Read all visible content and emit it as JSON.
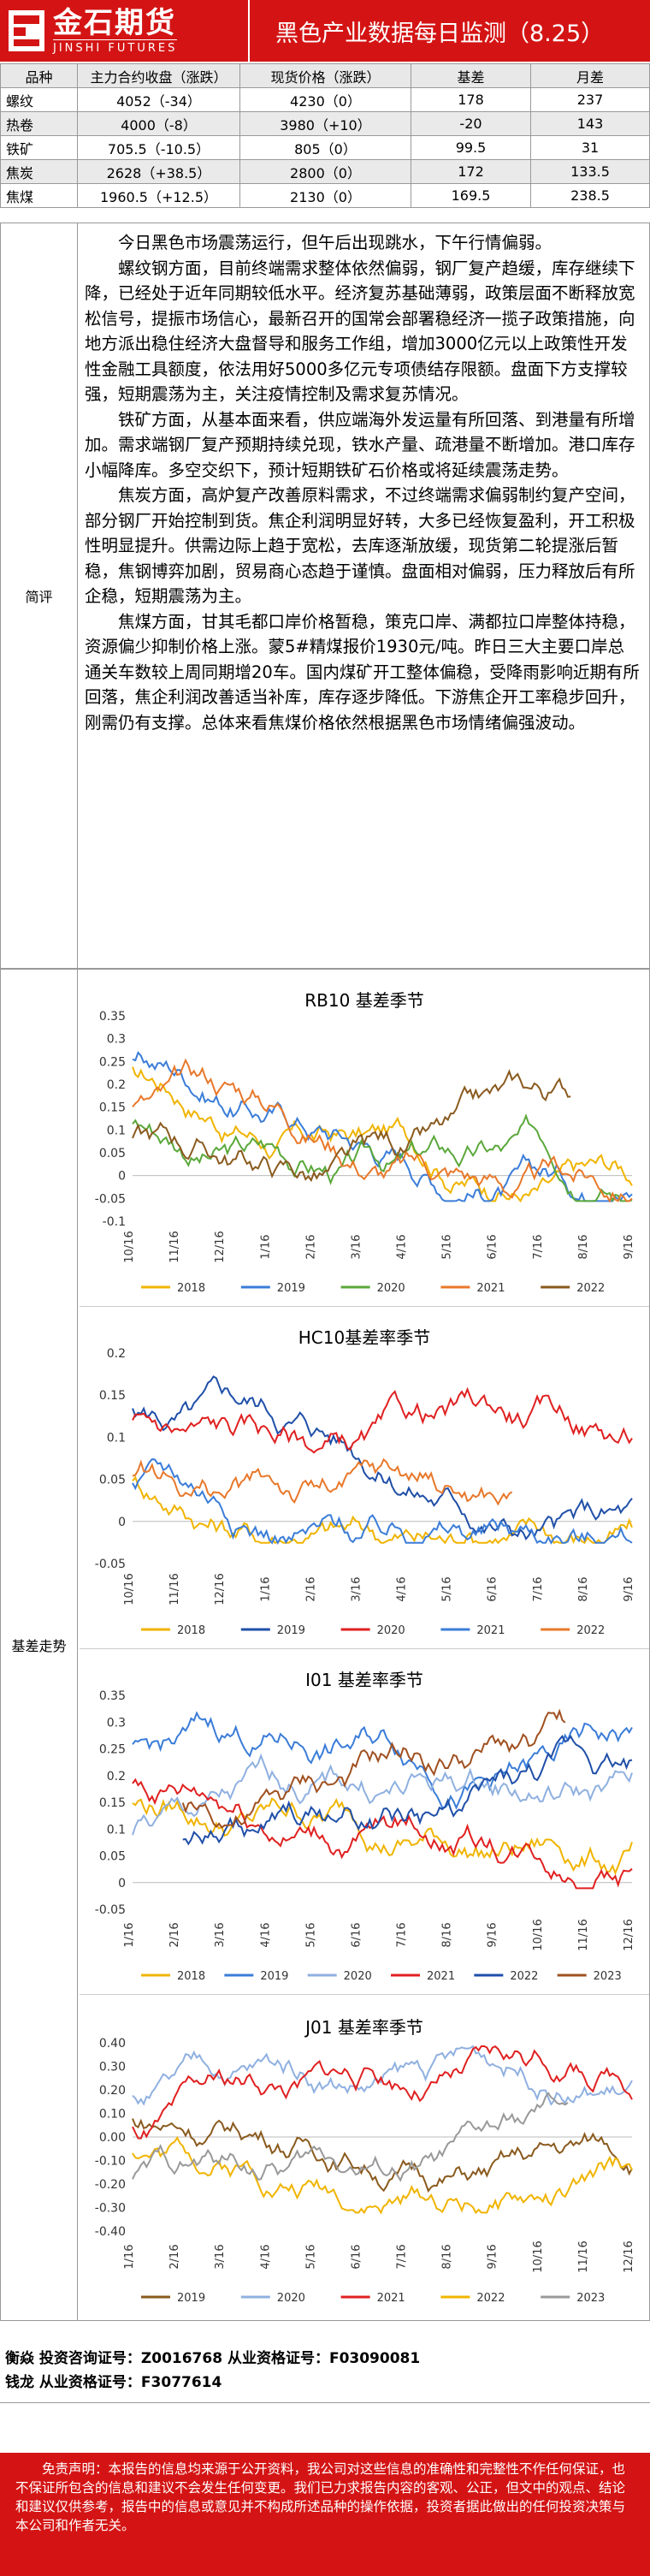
{
  "header": {
    "logo_cn": "金石期货",
    "logo_en": "JINSHI FUTURES",
    "title": "黑色产业数据每日监测（8.25）"
  },
  "price_table": {
    "headers": [
      "品种",
      "主力合约收盘（涨跌）",
      "现货价格（涨跌）",
      "基差",
      "月差"
    ],
    "rows": [
      [
        "螺纹",
        "4052（-34）",
        "4230（0）",
        "178",
        "237"
      ],
      [
        "热卷",
        "4000（-8）",
        "3980（+10）",
        "-20",
        "143"
      ],
      [
        "铁矿",
        "705.5（-10.5）",
        "805（0）",
        "99.5",
        "31"
      ],
      [
        "焦炭",
        "2628（+38.5）",
        "2800（0）",
        "172",
        "133.5"
      ],
      [
        "焦煤",
        "1960.5（+12.5）",
        "2130（0）",
        "169.5",
        "238.5"
      ]
    ]
  },
  "commentary": {
    "label": "简评",
    "paragraphs": [
      "今日黑色市场震荡运行，但午后出现跳水，下午行情偏弱。",
      "螺纹钢方面，目前终端需求整体依然偏弱，钢厂复产趋缓，库存继续下降，已经处于近年同期较低水平。经济复苏基础薄弱，政策层面不断释放宽松信号，提振市场信心，最新召开的国常会部署稳经济一揽子政策措施，向地方派出稳住经济大盘督导和服务工作组，增加3000亿元以上政策性开发性金融工具额度，依法用好5000多亿元专项债结存限额。盘面下方支撑较强，短期震荡为主，关注疫情控制及需求复苏情况。",
      "铁矿方面，从基本面来看，供应端海外发运量有所回落、到港量有所增加。需求端钢厂复产预期持续兑现，铁水产量、疏港量不断增加。港口库存小幅降库。多空交织下，预计短期铁矿石价格或将延续震荡走势。",
      "焦炭方面，高炉复产改善原料需求，不过终端需求偏弱制约复产空间，部分钢厂开始控制到货。焦企利润明显好转，大多已经恢复盈利，开工积极性明显提升。供需边际上趋于宽松，去库逐渐放缓，现货第二轮提涨后暂稳，焦钢博弈加剧，贸易商心态趋于谨慎。盘面相对偏弱，压力释放后有所企稳，短期震荡为主。",
      "焦煤方面，甘其毛都口岸价格暂稳，策克口岸、满都拉口岸整体持稳，资源偏少抑制价格上涨。蒙5#精煤报价1930元/吨。昨日三大主要口岸总通关车数较上周同期增20车。国内煤矿开工整体偏稳，受降雨影响近期有所回落，焦企利润改善适当补库，库存逐步降低。下游焦企开工率稳步回升，刚需仍有支撑。总体来看焦煤价格依然根据黑色市场情绪偏强波动。"
    ]
  },
  "basis_section": {
    "label": "基差走势"
  },
  "charts": [
    {
      "title": "RB10 基差季节",
      "yticks": [
        "0.35",
        "0.3",
        "0.25",
        "0.2",
        "0.15",
        "0.1",
        "0.05",
        "0",
        "-0.05",
        "-0.1"
      ],
      "xticks": [
        "10/16",
        "11/16",
        "12/16",
        "1/16",
        "2/16",
        "3/16",
        "4/16",
        "5/16",
        "6/16",
        "7/16",
        "8/16",
        "9/16"
      ],
      "legend": [
        "2018",
        "2019",
        "2020",
        "2021",
        "2022"
      ],
      "colors": [
        "#f0b400",
        "#3b7dd8",
        "#5aa83a",
        "#e8782a",
        "#8a5a1e"
      ]
    },
    {
      "title": "HC10基差率季节",
      "yticks": [
        "0.2",
        "0.15",
        "0.1",
        "0.05",
        "0",
        "-0.05"
      ],
      "xticks": [
        "10/16",
        "11/16",
        "12/16",
        "1/16",
        "2/16",
        "3/16",
        "4/16",
        "5/16",
        "6/16",
        "7/16",
        "8/16",
        "9/16"
      ],
      "legend": [
        "2018",
        "2019",
        "2020",
        "2021",
        "2022"
      ],
      "colors": [
        "#f0b400",
        "#1f4fa8",
        "#e02020",
        "#3b7dd8",
        "#e8782a"
      ]
    },
    {
      "title": "I01 基差率季节",
      "yticks": [
        "0.35",
        "0.3",
        "0.25",
        "0.2",
        "0.15",
        "0.1",
        "0.05",
        "0",
        "-0.05"
      ],
      "xticks": [
        "1/16",
        "2/16",
        "3/16",
        "4/16",
        "5/16",
        "6/16",
        "7/16",
        "8/16",
        "9/16",
        "10/16",
        "11/16",
        "12/16"
      ],
      "legend": [
        "2018",
        "2019",
        "2020",
        "2021",
        "2022",
        "2023"
      ],
      "colors": [
        "#f0b400",
        "#3b7dd8",
        "#8fb0e0",
        "#e02020",
        "#1f4fa8",
        "#a05020"
      ]
    },
    {
      "title": "J01 基差率季节",
      "yticks": [
        "0.40",
        "0.30",
        "0.20",
        "0.10",
        "0.00",
        "-0.10",
        "-0.20",
        "-0.30",
        "-0.40"
      ],
      "xticks": [
        "1/16",
        "2/16",
        "3/16",
        "4/16",
        "5/16",
        "6/16",
        "7/16",
        "8/16",
        "9/16",
        "10/16",
        "11/16",
        "12/16"
      ],
      "legend": [
        "2019",
        "2020",
        "2021",
        "2022",
        "2023"
      ],
      "colors": [
        "#8a5a1e",
        "#8fb0e0",
        "#e02020",
        "#f0b400",
        "#999999"
      ]
    }
  ],
  "authors": {
    "line1": "衡焱 投资咨询证号：Z0016768 从业资格证号：F03090081",
    "line2": "钱龙 从业资格证号：F3077614"
  },
  "disclaimer": "免责声明：本报告的信息均来源于公开资料，我公司对这些信息的准确性和完整性不作任何保证，也不保证所包含的信息和建议不会发生任何变更。我们已力求报告内容的客观、公正，但文中的观点、结论和建议仅供参考，报告中的信息或意见并不构成所述品种的操作依据，投资者据此做出的任何投资决策与本公司和作者无关。"
}
